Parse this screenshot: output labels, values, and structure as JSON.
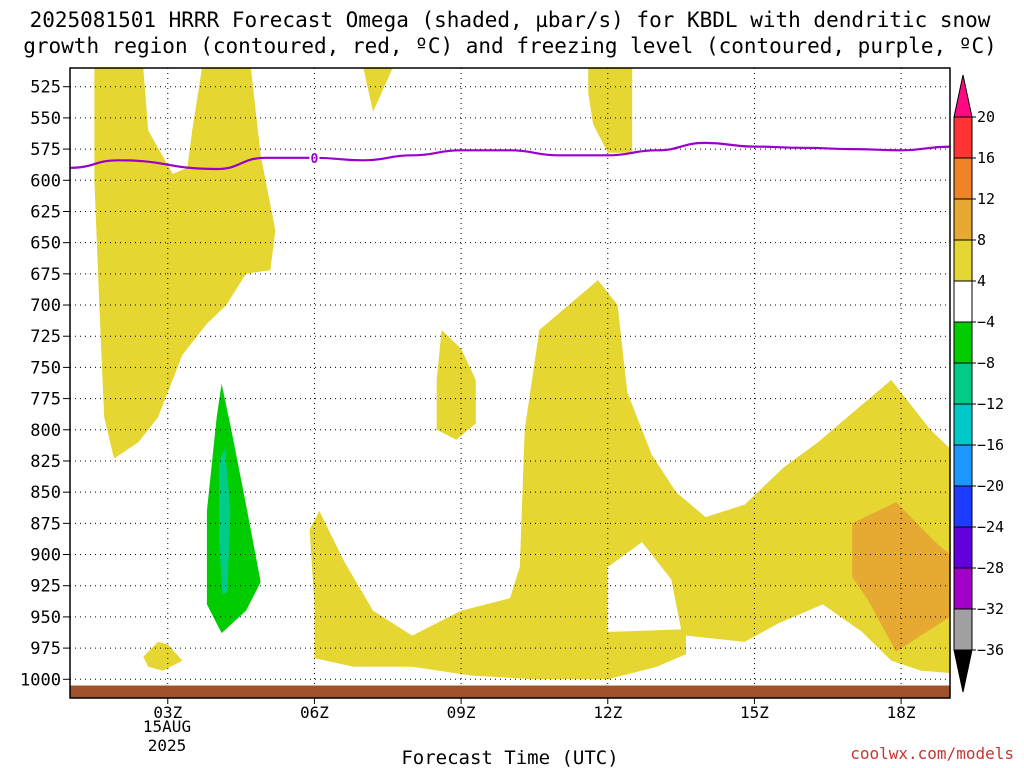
{
  "title_line1": "2025081501 HRRR Forecast Omega (shaded, µbar/s) for KBDL with dendritic snow",
  "title_line2": "growth region (contoured, red, ºC) and freezing level (contoured, purple, ºC)",
  "credit": "coolwx.com/models",
  "credit_color": "#cc3333",
  "chart_data": {
    "type": "time-height cross-section",
    "xlabel": "Forecast Time (UTC)",
    "x_ticks": [
      "03Z",
      "06Z",
      "09Z",
      "12Z",
      "15Z",
      "18Z"
    ],
    "x_tick_hours": [
      3,
      6,
      9,
      12,
      15,
      18
    ],
    "x_range_hours": [
      1,
      19
    ],
    "date_labels": [
      "15AUG",
      "2025"
    ],
    "y_ticks": [
      525,
      550,
      575,
      600,
      625,
      650,
      675,
      700,
      725,
      750,
      775,
      800,
      825,
      850,
      875,
      900,
      925,
      950,
      975,
      1000
    ],
    "y_range_hPa": [
      510,
      1015
    ],
    "grid": true,
    "colorbar": {
      "levels": [
        20,
        16,
        12,
        8,
        4,
        -4,
        -8,
        -12,
        -16,
        -20,
        -24,
        -28,
        -32,
        -36
      ],
      "colors": [
        "#ff0a82",
        "#ff3333",
        "#f08228",
        "#e6aa32",
        "#e6d632",
        "#ffffff",
        "#00cc00",
        "#00cc88",
        "#00c8c8",
        "#1e96ff",
        "#1e3cff",
        "#6400dc",
        "#a000c8",
        "#a0a0a0",
        "#000000"
      ]
    },
    "shading_colors": {
      "w4_8": "#e6d632",
      "w8_12": "#e6aa32",
      "w_m4_m8": "#00cc00",
      "w_m8_m12": "#00cc88"
    },
    "freezing_level": {
      "color": "#9900cc",
      "label": "0",
      "hours": [
        1,
        2,
        4,
        5,
        6,
        7,
        8,
        9,
        10,
        11,
        12,
        13,
        14,
        15,
        16,
        17,
        18,
        19
      ],
      "pressure_hPa": [
        590,
        584,
        591,
        582,
        582,
        584,
        580,
        576,
        576,
        580,
        580,
        576,
        570,
        573,
        574,
        575,
        576,
        573
      ]
    },
    "terrain_color": "#a0522d",
    "terrain_top_hPa": 1005
  }
}
